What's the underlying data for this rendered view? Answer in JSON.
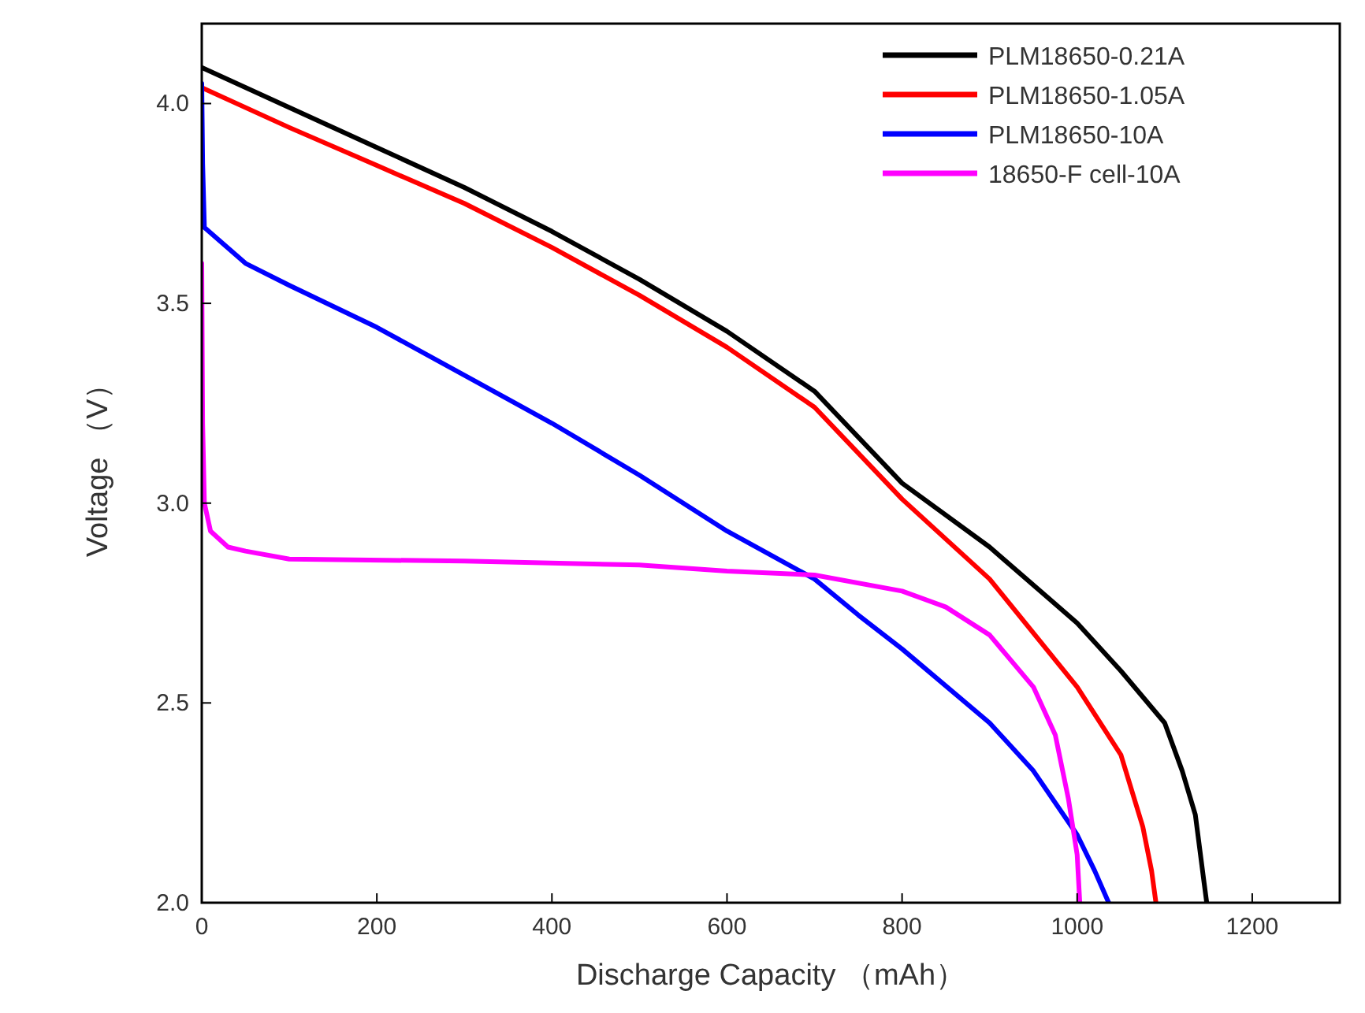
{
  "chart_data": {
    "type": "line",
    "xlabel": "Discharge Capacity （mAh）",
    "ylabel": "Voltage （V）",
    "xlim": [
      0,
      1300
    ],
    "ylim": [
      2.0,
      4.2
    ],
    "xticks": [
      0,
      200,
      400,
      600,
      800,
      1000,
      1200
    ],
    "yticks": [
      {
        "value": 2,
        "label": "2.0"
      },
      2.5,
      {
        "value": 3,
        "label": "3.0"
      },
      3.5,
      {
        "value": 4,
        "label": "4.0"
      }
    ],
    "grid": false,
    "legend": "top right",
    "marker": "none",
    "line_style": "solid",
    "series": [
      {
        "name": "PLM18650-0.21A",
        "color": "#000000",
        "x": [
          0,
          100,
          200,
          300,
          400,
          500,
          600,
          700,
          800,
          900,
          1000,
          1050,
          1100,
          1120,
          1135,
          1145,
          1148
        ],
        "values": [
          4.09,
          3.99,
          3.89,
          3.79,
          3.68,
          3.56,
          3.43,
          3.28,
          3.05,
          2.89,
          2.7,
          2.58,
          2.45,
          2.33,
          2.22,
          2.05,
          2.0
        ]
      },
      {
        "name": "PLM18650-1.05A",
        "color": "#ff0000",
        "x": [
          0,
          100,
          200,
          300,
          400,
          500,
          600,
          700,
          800,
          900,
          1000,
          1050,
          1075,
          1085,
          1090
        ],
        "values": [
          4.04,
          3.94,
          3.845,
          3.75,
          3.64,
          3.52,
          3.39,
          3.24,
          3.01,
          2.81,
          2.54,
          2.37,
          2.19,
          2.08,
          2.0
        ]
      },
      {
        "name": "PLM18650-10A",
        "color": "#0000ff",
        "x": [
          0,
          1,
          3,
          50,
          100,
          200,
          300,
          400,
          500,
          600,
          650,
          700,
          750,
          800,
          900,
          950,
          1000,
          1020,
          1036
        ],
        "values": [
          4.05,
          3.85,
          3.69,
          3.6,
          3.545,
          3.44,
          3.32,
          3.2,
          3.07,
          2.93,
          2.87,
          2.81,
          2.72,
          2.635,
          2.45,
          2.33,
          2.17,
          2.08,
          2.0
        ]
      },
      {
        "name": "18650-F cell-10A",
        "color": "#ff00ff",
        "x": [
          0,
          1,
          3,
          10,
          30,
          50,
          100,
          300,
          500,
          600,
          700,
          800,
          850,
          900,
          950,
          975,
          990,
          1000,
          1003
        ],
        "values": [
          3.6,
          3.2,
          3.0,
          2.93,
          2.89,
          2.88,
          2.86,
          2.855,
          2.845,
          2.83,
          2.82,
          2.78,
          2.74,
          2.67,
          2.54,
          2.42,
          2.26,
          2.12,
          2.0
        ]
      }
    ]
  }
}
